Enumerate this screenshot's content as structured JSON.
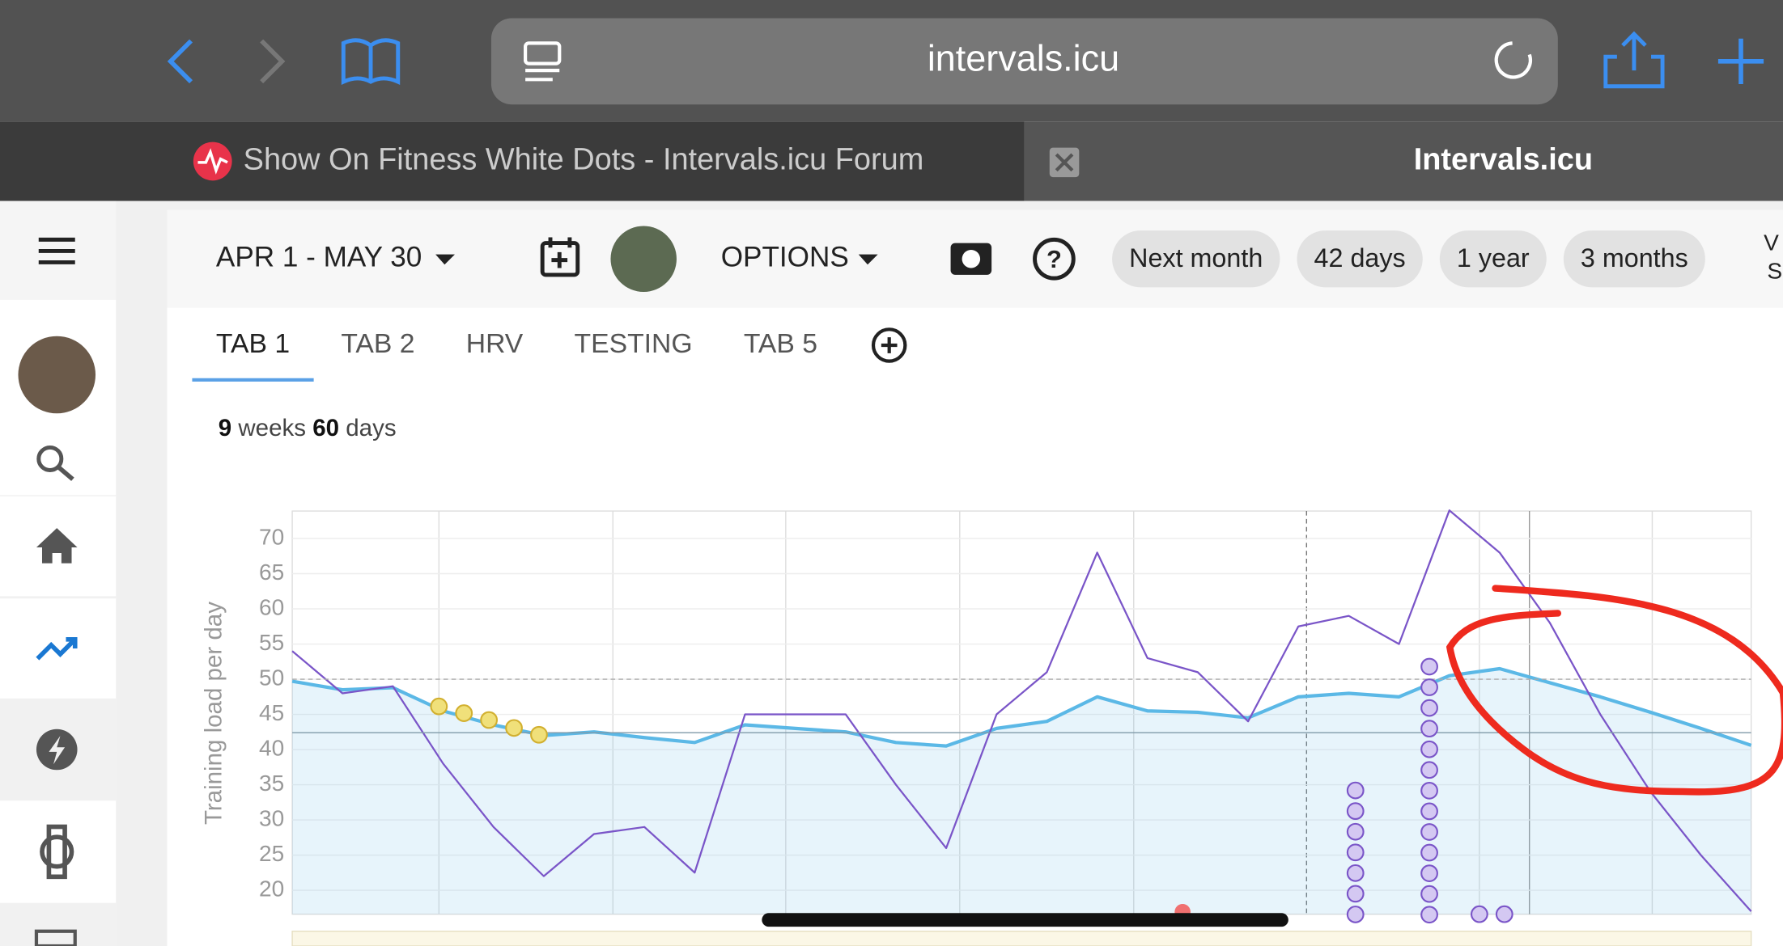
{
  "browser": {
    "url": "intervals.icu",
    "tabs": [
      "Show On Fitness White Dots - Intervals.icu Forum",
      "Intervals.icu"
    ]
  },
  "toolbar": {
    "date_range": "APR 1 - MAY 30",
    "options": "OPTIONS",
    "ranges": [
      "Next month",
      "42 days",
      "1 year",
      "3 months"
    ]
  },
  "tabs": [
    "TAB 1",
    "TAB 2",
    "HRV",
    "TESTING",
    "TAB 5"
  ],
  "summary": {
    "weeks": 9,
    "weeks_label": "weeks",
    "days": 60,
    "days_label": "days"
  },
  "chart_data": {
    "type": "line",
    "y_label": "Training load per day",
    "ylim": [
      16.6,
      73.9
    ],
    "yticks": [
      20,
      25,
      30,
      35,
      40,
      45,
      50,
      55,
      60,
      65,
      70
    ],
    "grid": true,
    "reference_lines": [
      {
        "value": 50,
        "style": "dashed"
      },
      {
        "value": 42.4,
        "style": "solid"
      }
    ],
    "series": [
      {
        "color": "#5bb8e6",
        "fill": true,
        "values": [
          49.7,
          48.5,
          48.8,
          45.5,
          43.5,
          42,
          42.5,
          41.7,
          41,
          43.5,
          43,
          42.5,
          41,
          40.5,
          43,
          44,
          47.5,
          45.5,
          45.3,
          44.5,
          47.5,
          48,
          47.5,
          50.5,
          51.5,
          49.5,
          47.5,
          45.3,
          43,
          40.6
        ]
      },
      {
        "color": "#7a55c8",
        "fill": false,
        "values": [
          54,
          48,
          49,
          38,
          29,
          22,
          28,
          29,
          22.5,
          45,
          45,
          45,
          35,
          26,
          45,
          51,
          68,
          53,
          51,
          44,
          57.5,
          59,
          55,
          74,
          68,
          58,
          45,
          34,
          25,
          17
        ]
      }
    ]
  }
}
